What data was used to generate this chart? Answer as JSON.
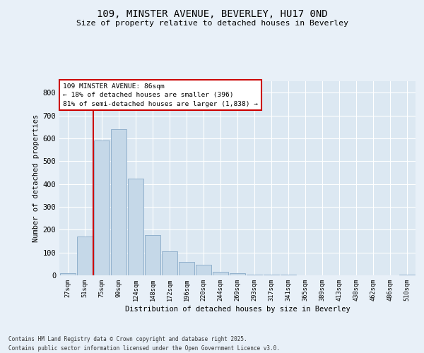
{
  "title_line1": "109, MINSTER AVENUE, BEVERLEY, HU17 0ND",
  "title_line2": "Size of property relative to detached houses in Beverley",
  "xlabel": "Distribution of detached houses by size in Beverley",
  "ylabel": "Number of detached properties",
  "categories": [
    "27sqm",
    "51sqm",
    "75sqm",
    "99sqm",
    "124sqm",
    "148sqm",
    "172sqm",
    "196sqm",
    "220sqm",
    "244sqm",
    "269sqm",
    "293sqm",
    "317sqm",
    "341sqm",
    "365sqm",
    "389sqm",
    "413sqm",
    "438sqm",
    "462sqm",
    "486sqm",
    "510sqm"
  ],
  "values": [
    10,
    170,
    590,
    640,
    425,
    175,
    105,
    60,
    45,
    15,
    8,
    4,
    3,
    2,
    0,
    0,
    0,
    0,
    0,
    0,
    3
  ],
  "bar_color": "#c5d8e8",
  "bar_edge_color": "#88aac8",
  "vline_color": "#cc0000",
  "vline_x": 1.5,
  "annotation_title": "109 MINSTER AVENUE: 86sqm",
  "annotation_line1": "← 18% of detached houses are smaller (396)",
  "annotation_line2": "81% of semi-detached houses are larger (1,838) →",
  "ylim": [
    0,
    850
  ],
  "yticks": [
    0,
    100,
    200,
    300,
    400,
    500,
    600,
    700,
    800
  ],
  "grid_color": "#ffffff",
  "plot_bg_color": "#dce8f2",
  "fig_bg_color": "#e8f0f8",
  "footer_line1": "Contains HM Land Registry data © Crown copyright and database right 2025.",
  "footer_line2": "Contains public sector information licensed under the Open Government Licence v3.0."
}
